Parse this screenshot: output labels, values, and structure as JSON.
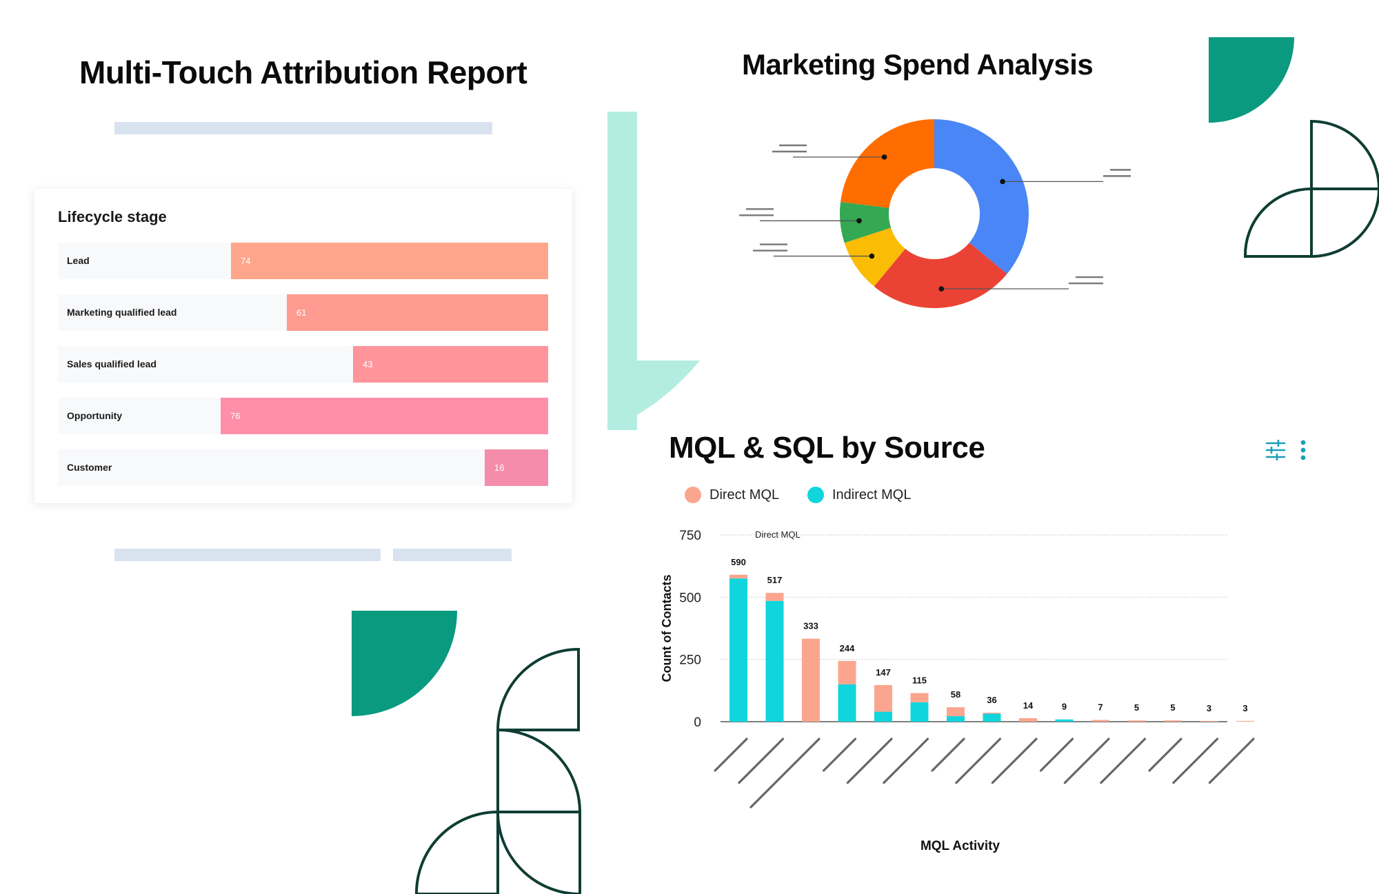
{
  "report": {
    "title": "Multi-Touch Attribution Report"
  },
  "lifecycle": {
    "title": "Lifecycle stage",
    "stages": [
      {
        "label": "Lead",
        "value": 74,
        "fraction": 0.647,
        "color": "#ffa58b"
      },
      {
        "label": "Marketing qualified lead",
        "value": 61,
        "fraction": 0.533,
        "color": "#ff9a91"
      },
      {
        "label": "Sales qualified lead",
        "value": 43,
        "fraction": 0.398,
        "color": "#ff949b"
      },
      {
        "label": "Opportunity",
        "value": 76,
        "fraction": 0.668,
        "color": "#ff8fa8"
      },
      {
        "label": "Customer",
        "value": 16,
        "fraction": 0.129,
        "color": "#f58cab"
      }
    ]
  },
  "spend": {
    "title": "Marketing Spend Analysis"
  },
  "mql_chart": {
    "title": "MQL & SQL by Source",
    "icons": [
      "sliders-icon",
      "more-vertical-icon"
    ]
  },
  "chart_data": [
    {
      "type": "pie",
      "title": "Marketing Spend Analysis",
      "donut": true,
      "slices": [
        {
          "value": 36,
          "color": "#4a86f5"
        },
        {
          "value": 25,
          "color": "#ea4335"
        },
        {
          "value": 9,
          "color": "#fbbc05"
        },
        {
          "value": 7,
          "color": "#34a853"
        },
        {
          "value": 23,
          "color": "#ff6d01"
        }
      ]
    },
    {
      "type": "bar",
      "stacked": true,
      "title": "MQL & SQL by Source",
      "xlabel": "MQL Activity",
      "ylabel": "Count of Contacts",
      "ylim": [
        0,
        750
      ],
      "yticks": [
        0,
        250,
        500,
        750
      ],
      "grid": true,
      "legend": "top-left",
      "annotation": "Direct MQL",
      "totals": [
        590,
        517,
        333,
        244,
        147,
        115,
        58,
        36,
        14,
        9,
        7,
        5,
        5,
        3,
        3
      ],
      "series": [
        {
          "name": "Indirect MQL",
          "color": "#10d5dc",
          "values": [
            575,
            485,
            0,
            150,
            40,
            78,
            22,
            32,
            0,
            9,
            0,
            0,
            0,
            0,
            0
          ]
        },
        {
          "name": "Direct MQL",
          "color": "#fba58e",
          "values": [
            15,
            32,
            333,
            94,
            107,
            37,
            36,
            4,
            14,
            0,
            7,
            5,
            5,
            3,
            3
          ]
        }
      ]
    }
  ]
}
